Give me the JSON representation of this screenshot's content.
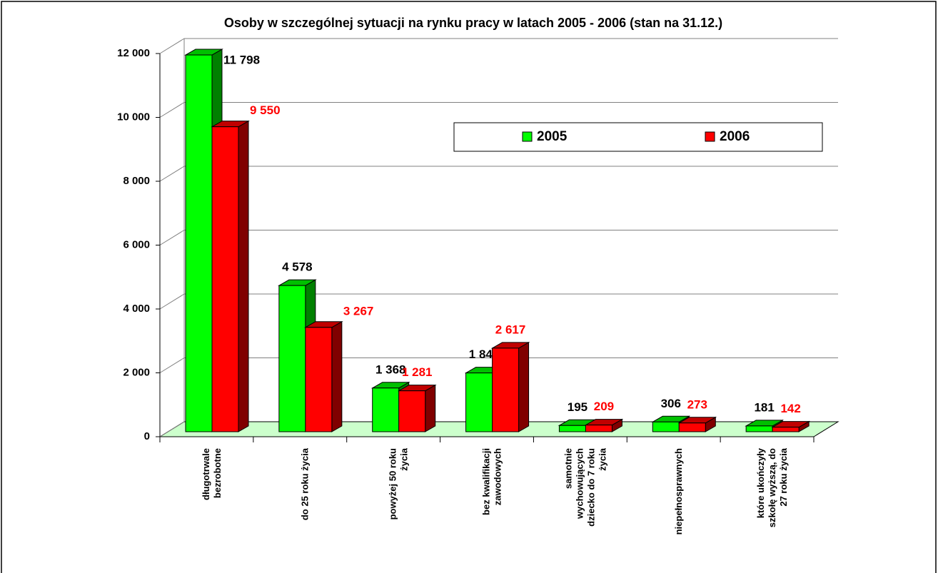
{
  "chart_data": {
    "type": "bar3d",
    "title": "Osoby w szczególnej sytuacji na rynku pracy w latach 2005 - 2006 (stan na 31.12.)",
    "categories": [
      [
        "długotrwale",
        "bezrobotne"
      ],
      [
        "do 25 roku życia"
      ],
      [
        "powyżej 50 roku",
        "życia"
      ],
      [
        "bez kwalifikacji",
        "zawodowych"
      ],
      [
        "samotnie",
        "wychowujących",
        "dziecko do 7 roku",
        "życia"
      ],
      [
        "niepełnosprawnych"
      ],
      [
        "które ukończyły",
        "szkołę wyższą, do",
        "27 roku życia"
      ]
    ],
    "series": [
      {
        "name": "2005",
        "color": "#00ff00",
        "side_color": "#008000",
        "top_color": "#00c000",
        "label_color": "#000000",
        "values": [
          11798,
          4578,
          1368,
          1840,
          195,
          306,
          181
        ],
        "value_labels": [
          "11 798",
          "4 578",
          "1 368",
          "1 840",
          "195",
          "306",
          "181"
        ]
      },
      {
        "name": "2006",
        "color": "#ff0000",
        "side_color": "#800000",
        "top_color": "#c00000",
        "label_color": "#ff0000",
        "values": [
          9550,
          3267,
          1281,
          2617,
          209,
          273,
          142
        ],
        "value_labels": [
          "9 550",
          "3 267",
          "1 281",
          "2 617",
          "209",
          "273",
          "142"
        ]
      }
    ],
    "ylim": [
      0,
      12000
    ],
    "yticks": [
      0,
      {
        "value": 2000,
        "label": "2 000"
      },
      {
        "value": 4000,
        "label": "4 000"
      },
      {
        "value": 6000,
        "label": "6 000"
      },
      {
        "value": 8000,
        "label": "8 000"
      },
      {
        "value": 10000,
        "label": "10 000"
      },
      {
        "value": 12000,
        "label": "12 000"
      }
    ],
    "grid": true,
    "floor_color": "#ccffcc",
    "legend": "top-right"
  }
}
